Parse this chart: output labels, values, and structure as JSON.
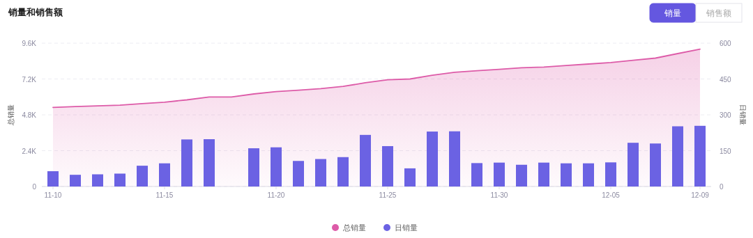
{
  "chart_data": {
    "type": "bar",
    "title": "销量和销售额",
    "annotations": [
      "销量",
      "销售额"
    ],
    "categories": [
      "11-10",
      null,
      null,
      null,
      null,
      "11-15",
      null,
      null,
      null,
      null,
      "11-20",
      null,
      null,
      null,
      null,
      "11-25",
      null,
      null,
      null,
      null,
      "11-30",
      null,
      null,
      null,
      null,
      "12-05",
      null,
      null,
      null,
      "12-09"
    ],
    "series": [
      {
        "name": "总销量",
        "type": "area",
        "color": "#dd5ba8",
        "values": [
          5300,
          5350,
          5400,
          5450,
          5550,
          5650,
          5800,
          6000,
          6000,
          6200,
          6350,
          6450,
          6550,
          6700,
          6950,
          7150,
          7200,
          7450,
          7650,
          7750,
          7850,
          7950,
          8000,
          8100,
          8200,
          8300,
          8450,
          8600,
          8900,
          9200
        ]
      },
      {
        "name": "日销量",
        "axis": "y2",
        "color": "#6b62e3",
        "values": [
          64,
          49,
          51,
          54,
          87,
          97,
          197,
          198,
          0,
          160,
          164,
          107,
          115,
          123,
          216,
          169,
          76,
          230,
          231,
          98,
          100,
          91,
          100,
          97,
          97,
          101,
          183,
          180,
          252,
          254
        ]
      }
    ],
    "ylabel": "总销量",
    "y2label": "日销量",
    "ylim": [
      0,
      9600
    ],
    "yticks": [
      0,
      {
        "value": 2400,
        "label": "2.4K"
      },
      {
        "value": 4800,
        "label": "4.8K"
      },
      {
        "value": 7200,
        "label": "7.2K"
      },
      {
        "value": 9600,
        "label": "9.6K"
      }
    ],
    "y2lim": [
      0,
      600
    ],
    "y2ticks": [
      0,
      150,
      300,
      450,
      600
    ],
    "grid": "y",
    "legend": "bottom"
  }
}
